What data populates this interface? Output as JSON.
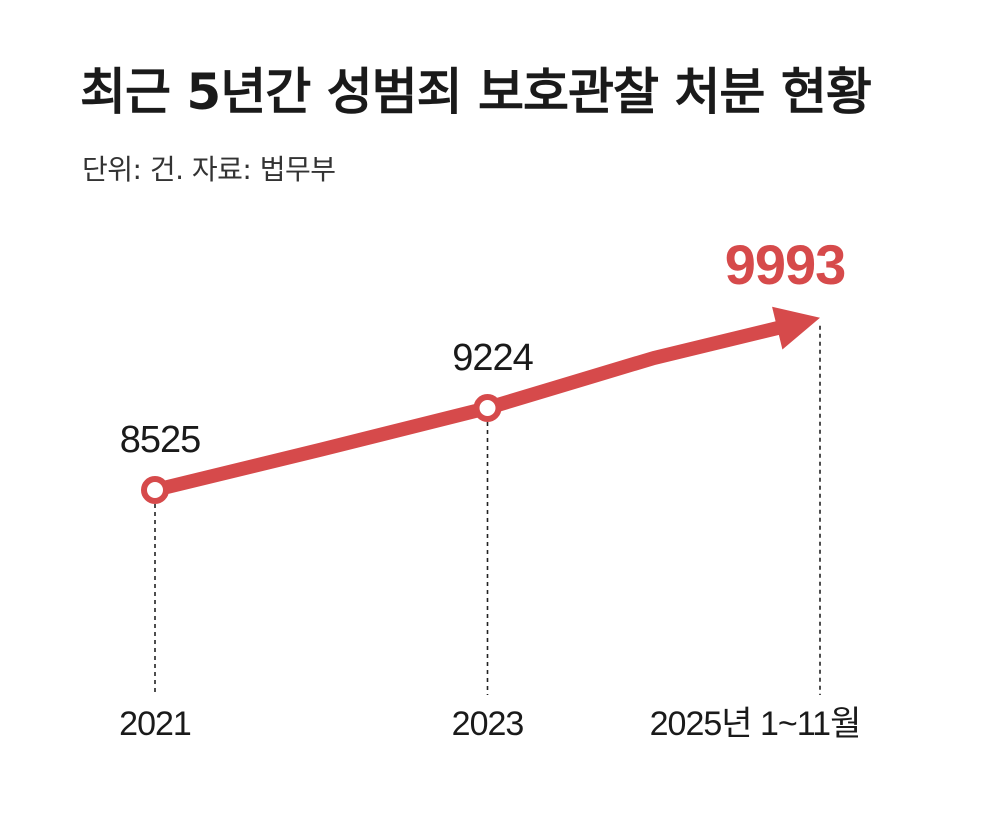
{
  "header": {
    "title": "최근 5년간 성범죄 보호관찰 처분 현황",
    "subtitle": "단위: 건. 자료: 법무부"
  },
  "colors": {
    "accent": "#d64a4b",
    "text": "#1a1a1a",
    "guide": "#222222",
    "background": "#ffffff"
  },
  "chart_data": {
    "type": "line",
    "title": "최근 5년간 성범죄 보호관찰 처분 현황",
    "subtitle": "단위: 건. 자료: 법무부",
    "xlabel": "",
    "ylabel": "",
    "grid": false,
    "legend": "none",
    "x_ticks": [
      "2021",
      "2023",
      "2025년 1~11월"
    ],
    "series": [
      {
        "points": [
          {
            "x": "2021",
            "y": 8525,
            "label": "8525",
            "marker": true
          },
          {
            "x": "2022",
            "y": 8870,
            "label": null,
            "marker": false
          },
          {
            "x": "2023",
            "y": 9224,
            "label": "9224",
            "marker": true
          },
          {
            "x": "2024",
            "y": 9650,
            "label": null,
            "marker": false
          },
          {
            "x": "2025년 1~11월",
            "y": 9993,
            "label": "9993",
            "marker": false,
            "highlight": true,
            "arrow": true
          }
        ]
      }
    ]
  }
}
